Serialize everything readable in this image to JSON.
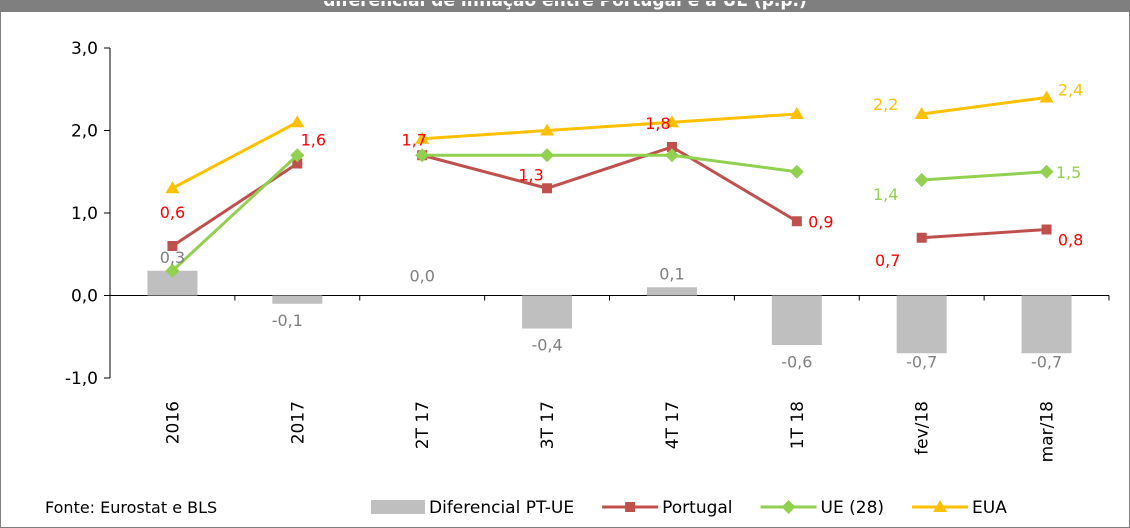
{
  "chart_data": {
    "type": "bar",
    "title": "diferencial de inflação entre Portugal e a UE (p.p.)",
    "categories": [
      "2016",
      "2017",
      "2T 17",
      "3T 17",
      "4T 17",
      "1T 18",
      "fev/18",
      "mar/18"
    ],
    "yticks": [
      "3,0",
      "2,0",
      "1,0",
      "0,0",
      "-1,0"
    ],
    "ylim": [
      -1,
      3
    ],
    "grid": false,
    "legend_position": "bottom",
    "series": [
      {
        "name": "Diferencial PT-UE",
        "kind": "bar",
        "color": "#bfbfbf",
        "label_color": "#7f7f7f",
        "values": [
          0.3,
          -0.1,
          0.0,
          -0.4,
          0.1,
          -0.6,
          -0.7,
          -0.7
        ],
        "labels": [
          "0,3",
          "-0,1",
          "0,0",
          "-0,4",
          "0,1",
          "-0,6",
          "-0,7",
          "-0,7"
        ]
      },
      {
        "name": "Portugal",
        "kind": "line",
        "marker": "square",
        "color": "#c0504d",
        "label_color": "#ff0000",
        "values": [
          0.6,
          1.6,
          1.7,
          1.3,
          1.8,
          0.9,
          0.7,
          0.8
        ],
        "labels": [
          "0,6",
          "1,6",
          "1,7",
          "1,3",
          "1,8",
          "0,9",
          "0,7",
          "0,8"
        ]
      },
      {
        "name": "UE (28)",
        "kind": "line",
        "marker": "diamond",
        "color": "#92d050",
        "label_color": "#92d050",
        "values": [
          0.3,
          1.7,
          1.7,
          1.7,
          1.7,
          1.5,
          1.4,
          1.5
        ],
        "labels": [
          "",
          "",
          "",
          "",
          "",
          "",
          "1,4",
          "1,5"
        ]
      },
      {
        "name": "EUA",
        "kind": "line",
        "marker": "triangle",
        "color": "#ffc000",
        "label_color": "#ffc000",
        "values": [
          1.3,
          2.1,
          1.9,
          2.0,
          2.1,
          2.2,
          2.2,
          2.4
        ],
        "labels": [
          "",
          "",
          "",
          "",
          "",
          "",
          "2,2",
          "2,4"
        ]
      }
    ],
    "breaks_after": [
      1,
      5
    ],
    "source": "Fonte: Eurostat e BLS"
  }
}
